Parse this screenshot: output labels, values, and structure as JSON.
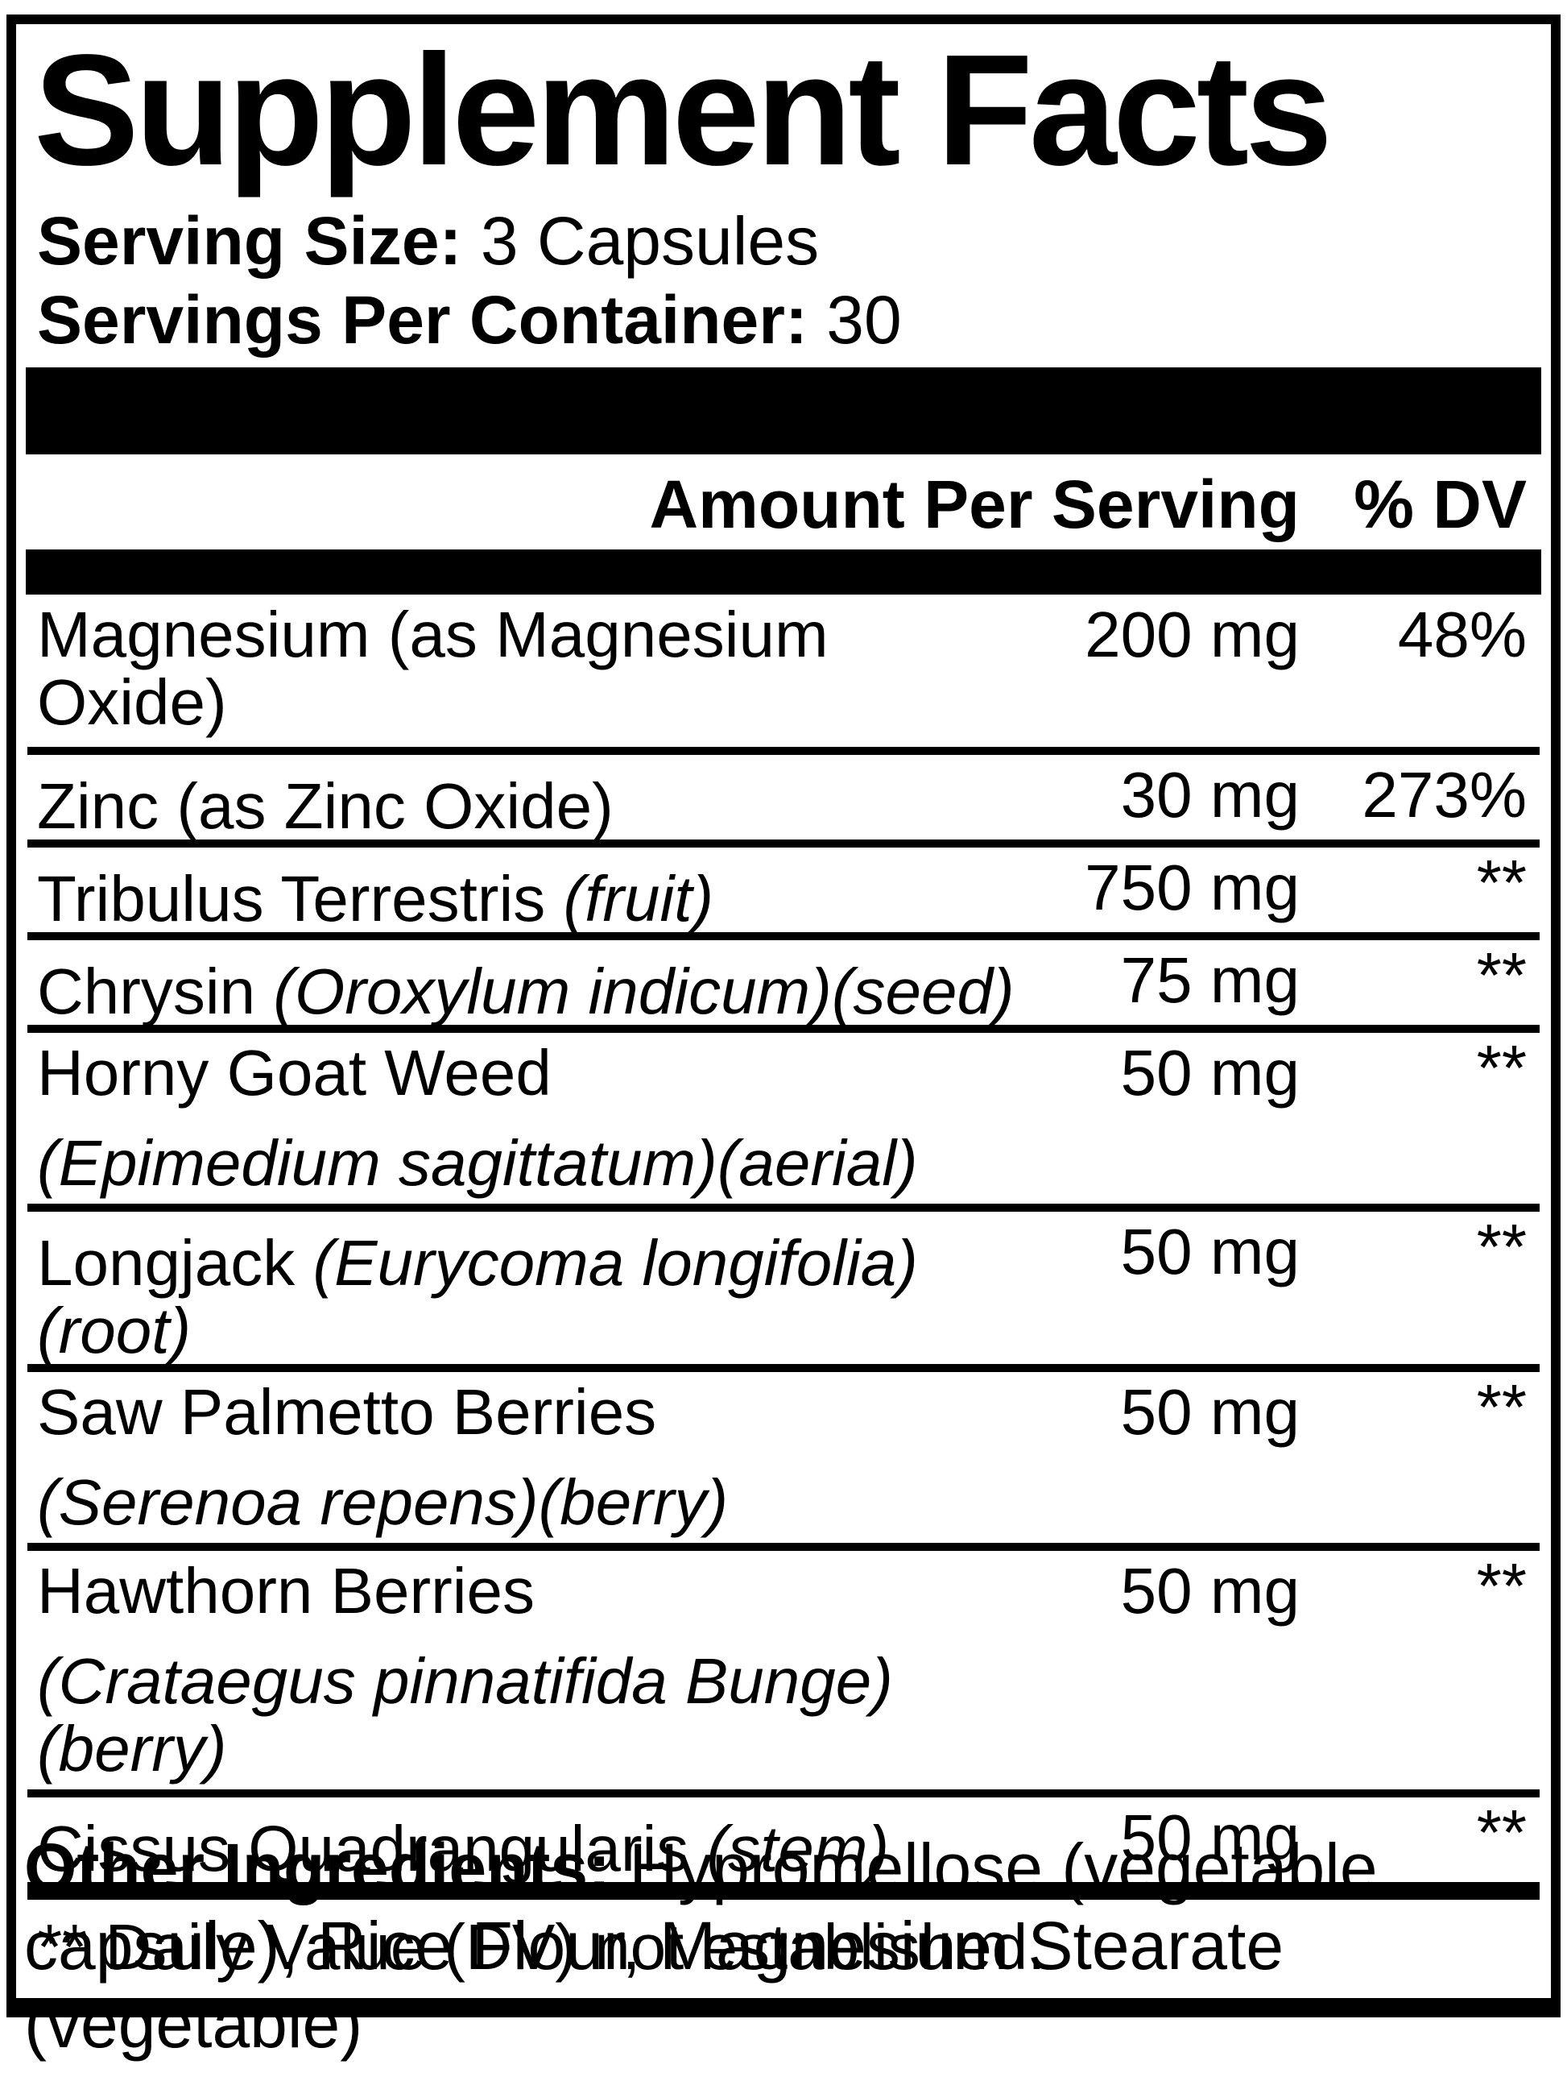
{
  "label": {
    "title": "Supplement Facts",
    "serving_size_label": "Serving Size:",
    "serving_size_value": "3 Capsules",
    "servings_per_container_label": "Servings Per Container:",
    "servings_per_container_value": "30",
    "header": {
      "amount_label": "Amount Per Serving",
      "dv_label": "% DV"
    },
    "rows": [
      {
        "name": "Magnesium",
        "qualifier": "(as Magnesium Oxide)",
        "qualifier_style": "normal",
        "qualifier_position": "inline",
        "amount": "200 mg",
        "dv": "48%"
      },
      {
        "name": "Zinc",
        "qualifier": "(as Zinc Oxide)",
        "qualifier_style": "normal",
        "qualifier_position": "inline",
        "amount": "30 mg",
        "dv": "273%"
      },
      {
        "name": "Tribulus Terrestris",
        "qualifier": "(fruit)",
        "qualifier_style": "italic",
        "qualifier_position": "inline",
        "amount": "750 mg",
        "dv": "**"
      },
      {
        "name": "Chrysin",
        "qualifier": "(Oroxylum indicum)(seed)",
        "qualifier_style": "italic",
        "qualifier_position": "inline",
        "amount": "75 mg",
        "dv": "**"
      },
      {
        "name": "Horny Goat Weed",
        "qualifier": "(Epimedium sagittatum)(aerial)",
        "qualifier_style": "italic",
        "qualifier_position": "below",
        "amount": "50 mg",
        "dv": "**"
      },
      {
        "name": "Longjack",
        "qualifier": "(Eurycoma longifolia)(root)",
        "qualifier_style": "italic",
        "qualifier_position": "inline",
        "amount": "50 mg",
        "dv": "**"
      },
      {
        "name": "Saw Palmetto Berries",
        "qualifier": "(Serenoa repens)(berry)",
        "qualifier_style": "italic",
        "qualifier_position": "below",
        "amount": "50 mg",
        "dv": "**"
      },
      {
        "name": "Hawthorn Berries",
        "qualifier": "(Crataegus pinnatifida Bunge)(berry)",
        "qualifier_style": "italic",
        "qualifier_position": "below",
        "amount": "50 mg",
        "dv": "**"
      },
      {
        "name": "Cissus Quadrangularis",
        "qualifier": "(stem)",
        "qualifier_style": "italic",
        "qualifier_position": "inline",
        "amount": "50 mg",
        "dv": "**"
      }
    ],
    "footnote": "** Daily Value (DV) not established."
  },
  "other_ingredients": {
    "label": "Other Ingredients:",
    "text": "Hypromellose (vegetable capsule), Rice Flour, Magnesium Stearate (vegetable)"
  },
  "colors": {
    "ink": "#000000",
    "paper": "#ffffff"
  }
}
